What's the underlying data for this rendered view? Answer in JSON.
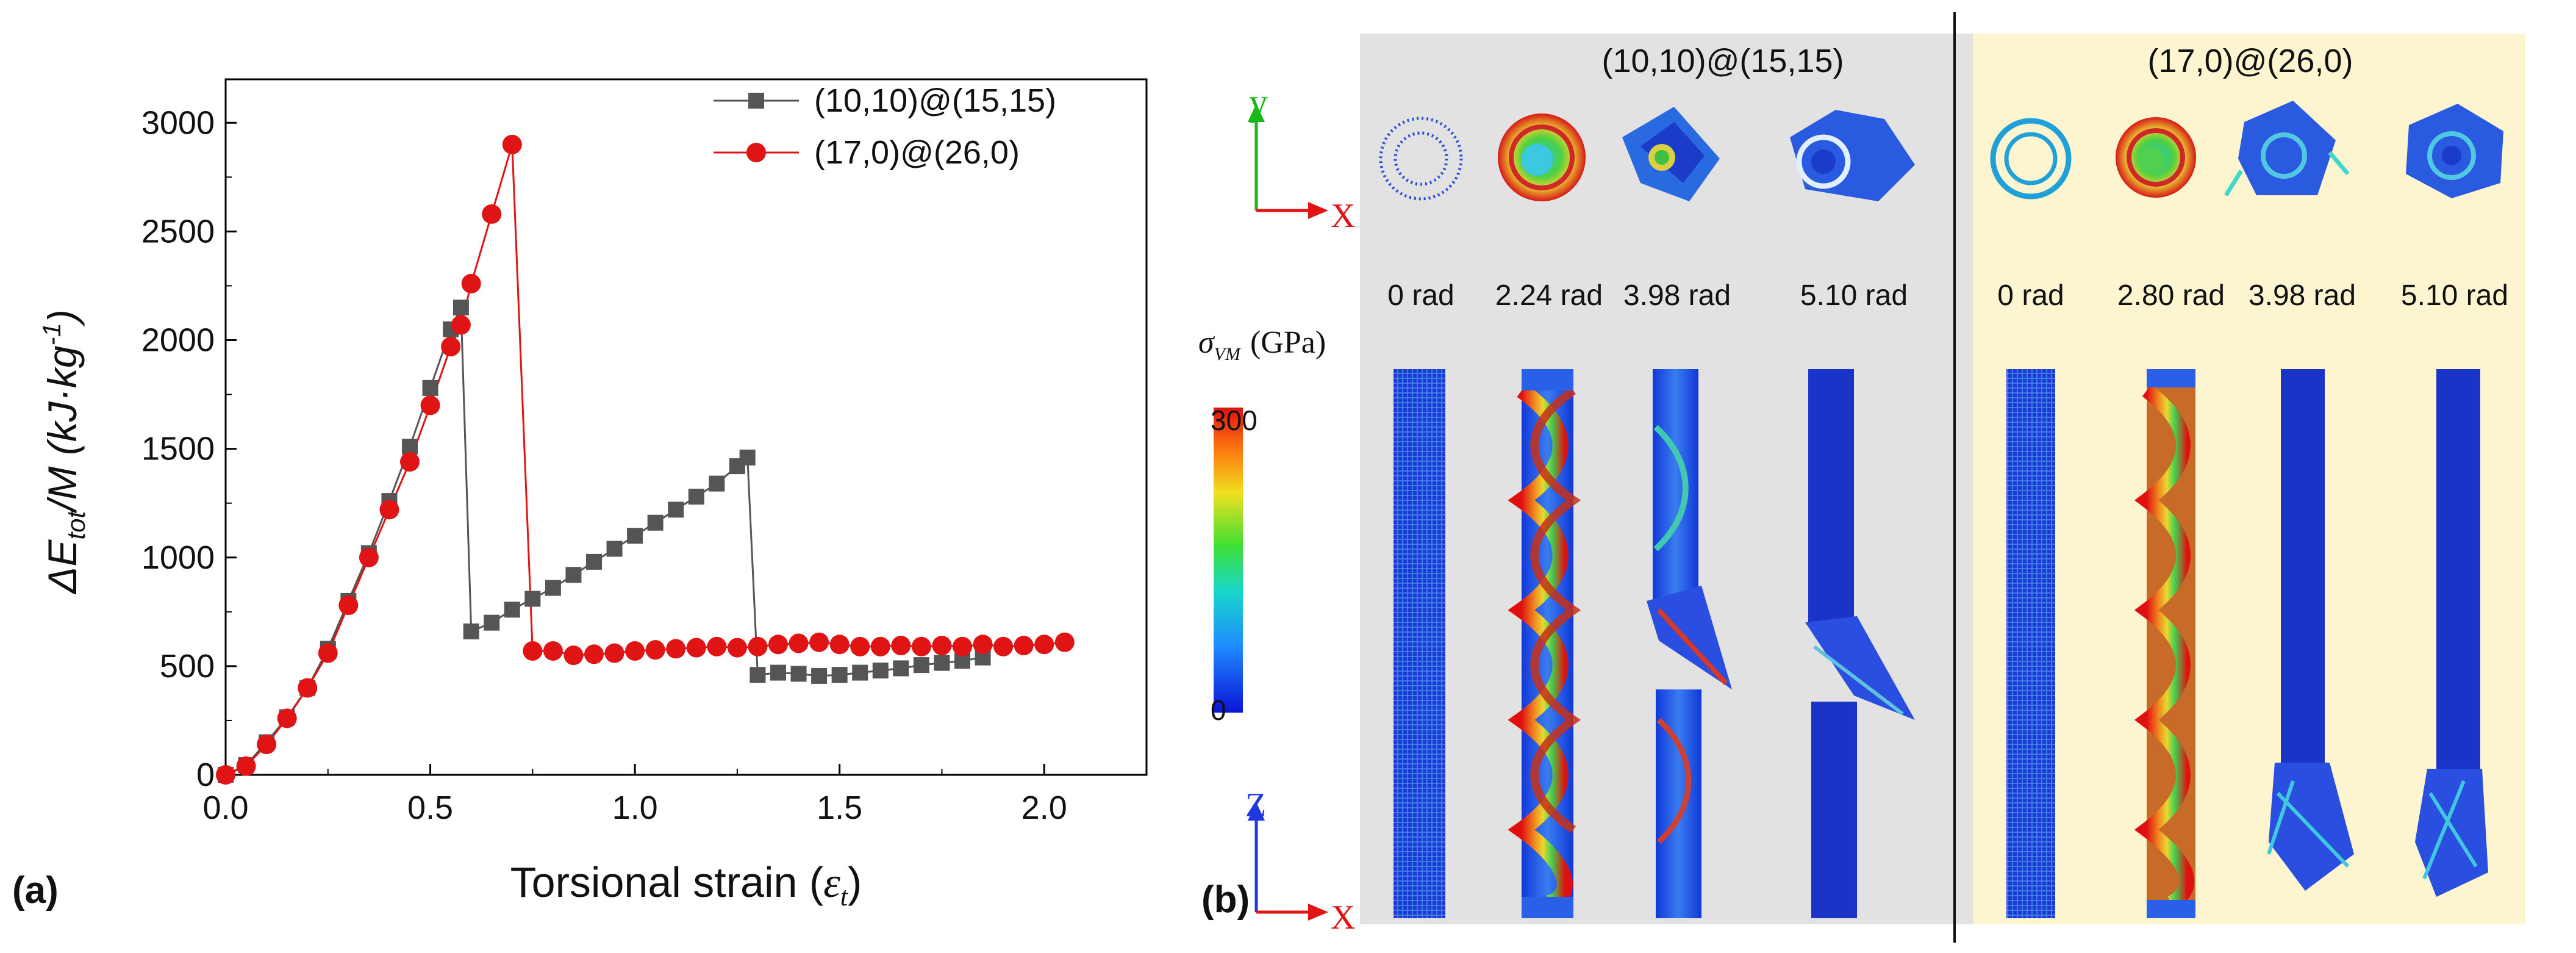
{
  "figure": {
    "panel_a_label": "(a)",
    "panel_b_label": "(b)"
  },
  "chart_data": {
    "type": "line",
    "title": "",
    "xlabel_main": "Torsional strain (",
    "xlabel_symbol": "ε",
    "xlabel_sub": "t",
    "xlabel_close": ")",
    "ylabel_delta": "ΔE",
    "ylabel_sub": "tot",
    "ylabel_rest": "/M (kJ·kg",
    "ylabel_sup": "-1",
    "ylabel_close": ")",
    "xlim": [
      0,
      2.25
    ],
    "ylim": [
      0,
      3200
    ],
    "xticks": [
      0.0,
      0.5,
      1.0,
      1.5,
      2.0
    ],
    "xtick_labels": [
      "0.0",
      "0.5",
      "1.0",
      "1.5",
      "2.0"
    ],
    "yticks": [
      0,
      500,
      1000,
      1500,
      2000,
      2500,
      3000
    ],
    "ytick_labels": [
      "0",
      "500",
      "1000",
      "1500",
      "2000",
      "2500",
      "3000"
    ],
    "legend_position": "top-right",
    "series": [
      {
        "name": "(10,10)@(15,15)",
        "color": "#555555",
        "marker": "square",
        "x": [
          0.0,
          0.05,
          0.1,
          0.15,
          0.2,
          0.25,
          0.3,
          0.35,
          0.4,
          0.45,
          0.5,
          0.55,
          0.575,
          0.6,
          0.65,
          0.7,
          0.75,
          0.8,
          0.85,
          0.9,
          0.95,
          1.0,
          1.05,
          1.1,
          1.15,
          1.2,
          1.25,
          1.275,
          1.3,
          1.35,
          1.4,
          1.45,
          1.5,
          1.55,
          1.6,
          1.65,
          1.7,
          1.75,
          1.8,
          1.85
        ],
        "y": [
          0,
          45,
          150,
          265,
          400,
          580,
          800,
          1020,
          1260,
          1510,
          1780,
          2050,
          2150,
          660,
          700,
          760,
          810,
          860,
          920,
          980,
          1040,
          1100,
          1160,
          1220,
          1280,
          1340,
          1420,
          1460,
          460,
          470,
          465,
          455,
          460,
          470,
          480,
          490,
          505,
          515,
          525,
          540
        ]
      },
      {
        "name": "(17,0)@(26,0)",
        "color": "#e01414",
        "marker": "circle",
        "x": [
          0.0,
          0.05,
          0.1,
          0.15,
          0.2,
          0.25,
          0.3,
          0.35,
          0.4,
          0.45,
          0.5,
          0.55,
          0.575,
          0.6,
          0.65,
          0.7,
          0.75,
          0.8,
          0.85,
          0.9,
          0.95,
          1.0,
          1.05,
          1.1,
          1.15,
          1.2,
          1.25,
          1.3,
          1.35,
          1.4,
          1.45,
          1.5,
          1.55,
          1.6,
          1.65,
          1.7,
          1.75,
          1.8,
          1.85,
          1.9,
          1.95,
          2.0,
          2.05
        ],
        "y": [
          0,
          40,
          140,
          260,
          400,
          560,
          780,
          1000,
          1220,
          1440,
          1700,
          1970,
          2070,
          2260,
          2580,
          2900,
          570,
          570,
          550,
          555,
          560,
          570,
          575,
          580,
          585,
          590,
          585,
          590,
          600,
          605,
          610,
          600,
          590,
          590,
          595,
          590,
          595,
          590,
          600,
          590,
          595,
          600,
          610
        ]
      }
    ]
  },
  "panel_b": {
    "group1_title": "(10,10)@(15,15)",
    "group2_title": "(17,0)@(26,0)",
    "group1_angles": [
      "0 rad",
      "2.24 rad",
      "3.98 rad",
      "5.10 rad"
    ],
    "group2_angles": [
      "0 rad",
      "2.80 rad",
      "3.98 rad",
      "5.10 rad"
    ],
    "axis_x_label": "X",
    "axis_y_label": "y",
    "axis_z_label": "Z",
    "colorbar_symbol": "σ",
    "colorbar_sub": "VM",
    "colorbar_unit": "(GPa)",
    "colorbar_max": "300",
    "colorbar_min": "0",
    "group1_bg": "#e2e2e2",
    "group2_bg": "#fcf5d0"
  }
}
